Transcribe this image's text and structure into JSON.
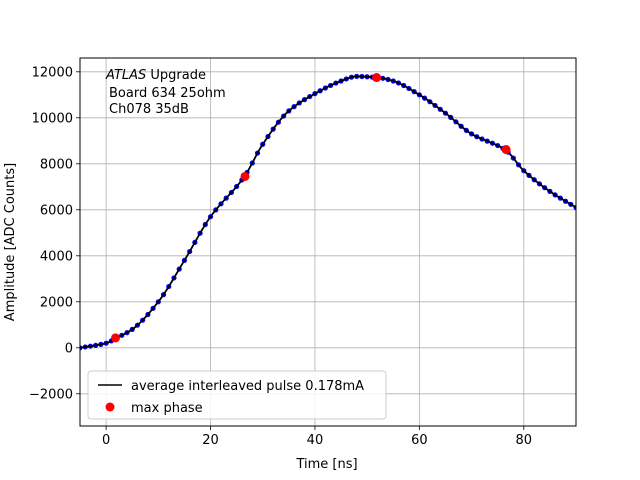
{
  "chart_data": {
    "type": "line",
    "title": "",
    "xlabel": "Time [ns]",
    "ylabel": "Amplitude [ADC Counts]",
    "xlim": [
      -5,
      90
    ],
    "ylim": [
      -3400,
      12600
    ],
    "xticks": [
      0,
      20,
      40,
      60,
      80
    ],
    "yticks": [
      -2000,
      0,
      2000,
      4000,
      6000,
      8000,
      10000,
      12000
    ],
    "grid": true,
    "legend_position": "lower-left",
    "annotation": {
      "line1_italic": "ATLAS",
      "line1_rest": " Upgrade",
      "line2": "Board 634 25ohm",
      "line3": "Ch078 35dB"
    },
    "curve_keypoints": {
      "x": [
        -5,
        0,
        2,
        5,
        10,
        15,
        20,
        26.5,
        30,
        35,
        40,
        45,
        48,
        52,
        55,
        60,
        65,
        70,
        76.5,
        80,
        85,
        90
      ],
      "y": [
        0,
        200,
        430,
        800,
        2000,
        3800,
        5700,
        7450,
        8850,
        10300,
        11050,
        11600,
        11800,
        11750,
        11600,
        11000,
        10200,
        9300,
        8600,
        7700,
        6800,
        6100
      ]
    },
    "series": [
      {
        "name": "average interleaved pulse 0.178mA",
        "style": "line+markers",
        "line_color": "#000000",
        "marker_color": "#0000ff",
        "marker_spacing_ns": 1.0
      },
      {
        "name": "max phase",
        "style": "markers",
        "marker_color": "#ff0000",
        "x": [
          1.8,
          26.6,
          51.8,
          76.6
        ],
        "y": [
          430,
          7450,
          11750,
          8620
        ]
      }
    ]
  }
}
